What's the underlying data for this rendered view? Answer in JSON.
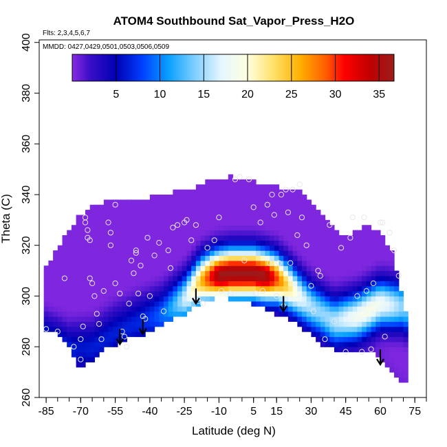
{
  "chart_data": {
    "type": "heatmap",
    "title": "ATOM4 Southbound Sat_Vapor_Press_H2O",
    "flights_label": "Flts: 2,3,4,5,6,7",
    "dates_label": "MMDD: 0427,0429,0501,0503,0506,0509",
    "xlabel": "Latitude (deg N)",
    "ylabel": "Theta (C)",
    "xlim": [
      -88,
      80
    ],
    "ylim": [
      260,
      401
    ],
    "x_ticks": [
      -85,
      -70,
      -55,
      -40,
      -25,
      -10,
      5,
      15,
      30,
      45,
      60,
      75
    ],
    "y_ticks": [
      260,
      280,
      300,
      320,
      340,
      360,
      380,
      400
    ],
    "colorbar": {
      "range": [
        0,
        36.7
      ],
      "ticks": [
        5,
        10,
        15,
        20,
        25,
        30,
        35
      ],
      "colors": [
        "#8a2be2",
        "#3a0fc8",
        "#0000b4",
        "#0040ff",
        "#0aa0ff",
        "#7fcfff",
        "#e6f6ff",
        "#ffffe0",
        "#ffe066",
        "#ffb000",
        "#ff5a00",
        "#ff0000",
        "#c00000",
        "#9b1c1c"
      ],
      "stops": [
        0,
        2,
        5,
        8,
        11,
        14,
        17,
        20,
        23,
        26,
        29,
        31,
        34,
        36.7
      ]
    },
    "field_bounds": {
      "lat": [
        -85,
        -80,
        -75,
        -72,
        -70,
        -68,
        -65,
        -60,
        -55,
        -50,
        -45,
        -40,
        -35,
        -30,
        -25,
        -20,
        -15,
        -10,
        -5,
        0,
        5,
        10,
        15,
        20,
        25,
        30,
        35,
        40,
        45,
        50,
        55,
        60,
        65,
        68,
        70,
        72
      ],
      "theta_low": [
        287,
        286,
        280,
        273,
        270,
        273,
        275,
        279,
        281,
        283,
        284,
        286,
        289,
        291,
        293,
        296,
        298,
        300,
        299,
        298,
        297,
        295,
        293,
        291,
        288,
        285,
        281,
        279,
        278,
        278,
        279,
        276,
        271,
        268,
        266,
        265
      ],
      "theta_high": [
        312,
        319,
        326,
        330,
        332,
        333,
        335,
        337,
        338,
        338,
        338,
        339,
        340,
        341,
        342,
        343,
        345,
        346,
        347,
        346,
        345,
        344,
        343,
        342,
        341,
        337,
        332,
        326,
        323,
        326,
        328,
        325,
        317,
        307,
        298,
        290
      ]
    },
    "moist_band": {
      "lat": [
        -85,
        -75,
        -65,
        -55,
        -45,
        -35,
        -25,
        -18,
        -12,
        -5,
        0,
        5,
        10,
        15,
        20,
        25,
        30,
        40,
        50,
        60,
        70,
        72
      ],
      "theta_center": [
        283,
        279,
        280,
        286,
        290,
        293,
        299,
        306,
        308,
        309,
        309,
        309,
        308,
        307,
        304,
        300,
        296,
        290,
        292,
        297,
        296,
        294
      ]
    },
    "observations": [
      [
        -85,
        287
      ],
      [
        -80,
        286
      ],
      [
        -77,
        307
      ],
      [
        -73,
        280
      ],
      [
        -70,
        275
      ],
      [
        -70,
        283
      ],
      [
        -69,
        288
      ],
      [
        -68,
        329
      ],
      [
        -68,
        331
      ],
      [
        -67,
        326
      ],
      [
        -67,
        323
      ],
      [
        -66,
        322
      ],
      [
        -66,
        307
      ],
      [
        -65,
        305
      ],
      [
        -64,
        300
      ],
      [
        -63,
        293
      ],
      [
        -62,
        289
      ],
      [
        -61,
        283
      ],
      [
        -60,
        302
      ],
      [
        -58,
        329
      ],
      [
        -57,
        325
      ],
      [
        -57,
        320
      ],
      [
        -55,
        336
      ],
      [
        -55,
        305
      ],
      [
        -53,
        301
      ],
      [
        -52,
        286
      ],
      [
        -51,
        284
      ],
      [
        -50,
        280
      ],
      [
        -49,
        297
      ],
      [
        -48,
        314
      ],
      [
        -47,
        309
      ],
      [
        -46,
        318
      ],
      [
        -46,
        317
      ],
      [
        -45,
        301
      ],
      [
        -44,
        312
      ],
      [
        -43,
        292
      ],
      [
        -42,
        291
      ],
      [
        -41,
        323
      ],
      [
        -40,
        300
      ],
      [
        -38,
        316
      ],
      [
        -36,
        321
      ],
      [
        -34,
        294
      ],
      [
        -32,
        318
      ],
      [
        -31,
        311
      ],
      [
        -30,
        327
      ],
      [
        -28,
        328
      ],
      [
        -25,
        329
      ],
      [
        -24,
        330
      ],
      [
        -22,
        322
      ],
      [
        -20,
        328
      ],
      [
        -19,
        298
      ],
      [
        -17,
        297
      ],
      [
        -15,
        319
      ],
      [
        -12,
        322
      ],
      [
        -10,
        331
      ],
      [
        -9,
        302
      ],
      [
        -5,
        301
      ],
      [
        -3,
        346
      ],
      [
        -1,
        347
      ],
      [
        1,
        314
      ],
      [
        3,
        346
      ],
      [
        5,
        335
      ],
      [
        6,
        301
      ],
      [
        8,
        329
      ],
      [
        9,
        302
      ],
      [
        11,
        336
      ],
      [
        12,
        313
      ],
      [
        13,
        340
      ],
      [
        14,
        332
      ],
      [
        15,
        300
      ],
      [
        16,
        313
      ],
      [
        17,
        340
      ],
      [
        18,
        296
      ],
      [
        19,
        342
      ],
      [
        20,
        333
      ],
      [
        21,
        313
      ],
      [
        22,
        342
      ],
      [
        24,
        324
      ],
      [
        25,
        344
      ],
      [
        26,
        331
      ],
      [
        28,
        320
      ],
      [
        30,
        304
      ],
      [
        31,
        294
      ],
      [
        33,
        310
      ],
      [
        34,
        308
      ],
      [
        36,
        283
      ],
      [
        38,
        328
      ],
      [
        40,
        290
      ],
      [
        43,
        319
      ],
      [
        45,
        278
      ],
      [
        47,
        323
      ],
      [
        48,
        331
      ],
      [
        50,
        300
      ],
      [
        52,
        278
      ],
      [
        53,
        331
      ],
      [
        54,
        302
      ],
      [
        56,
        279
      ],
      [
        57,
        305
      ],
      [
        60,
        329
      ],
      [
        61,
        329
      ],
      [
        62,
        284
      ],
      [
        64,
        325
      ],
      [
        66,
        318
      ],
      [
        68,
        308
      ]
    ],
    "arrows": [
      {
        "lat": -53,
        "theta": 281
      },
      {
        "lat": -43,
        "theta": 285
      },
      {
        "lat": -20,
        "theta": 297
      },
      {
        "lat": 18,
        "theta": 294
      },
      {
        "lat": 60,
        "theta": 273
      }
    ]
  }
}
